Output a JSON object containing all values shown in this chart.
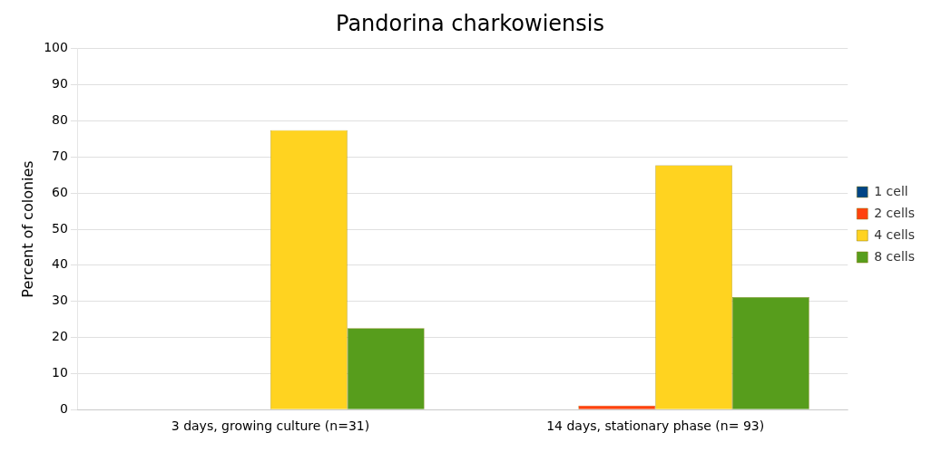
{
  "chart_data": {
    "type": "bar",
    "title": "Pandorina charkowiensis",
    "ylabel": "Percent of colonies",
    "categories": [
      "3 days, growing culture (n=31)",
      "14 days, stationary phase (n= 93)"
    ],
    "series": [
      {
        "name": "1 cell",
        "color": "#004586",
        "values": [
          0,
          0
        ]
      },
      {
        "name": "2 cells",
        "color": "#ff420e",
        "values": [
          0,
          1.1
        ]
      },
      {
        "name": "4 cells",
        "color": "#ffd320",
        "values": [
          77.4,
          67.7
        ]
      },
      {
        "name": "8 cells",
        "color": "#579d1c",
        "values": [
          22.6,
          31.2
        ]
      }
    ],
    "ylim": [
      0,
      100
    ],
    "yticks": [
      0,
      10,
      20,
      30,
      40,
      50,
      60,
      70,
      80,
      90,
      100
    ],
    "grid": "y",
    "legend": "right"
  }
}
